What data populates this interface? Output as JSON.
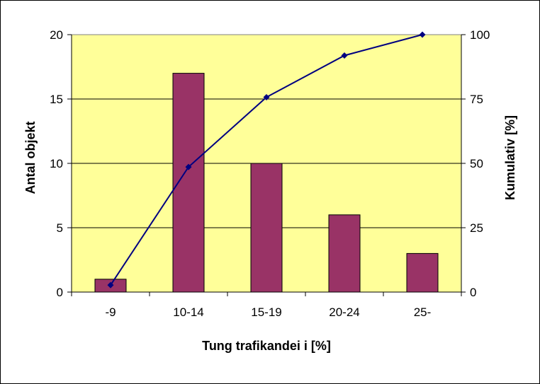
{
  "chart_data": {
    "type": "bar",
    "categories": [
      "-9",
      "10-14",
      "15-19",
      "20-24",
      "25-"
    ],
    "series": [
      {
        "type": "bar",
        "axis": "left",
        "values": [
          1,
          17,
          10,
          6,
          3
        ],
        "color": "#993366"
      },
      {
        "type": "line",
        "axis": "right",
        "values": [
          2.7,
          48.6,
          75.7,
          91.9,
          100
        ],
        "color": "#000080"
      }
    ],
    "xlabel": "Tung trafikandei i [%]",
    "ylabel": "Antal objekt",
    "y2label": "Kumulativ [%]",
    "ylim": [
      0,
      20
    ],
    "yticks": [
      "0",
      "5",
      "10",
      "15",
      "20"
    ],
    "y2lim": [
      0,
      100
    ],
    "y2ticks": [
      "0",
      "25",
      "50",
      "75",
      "100"
    ],
    "grid": true,
    "plot_background": "#ffff99",
    "legend": "none"
  }
}
